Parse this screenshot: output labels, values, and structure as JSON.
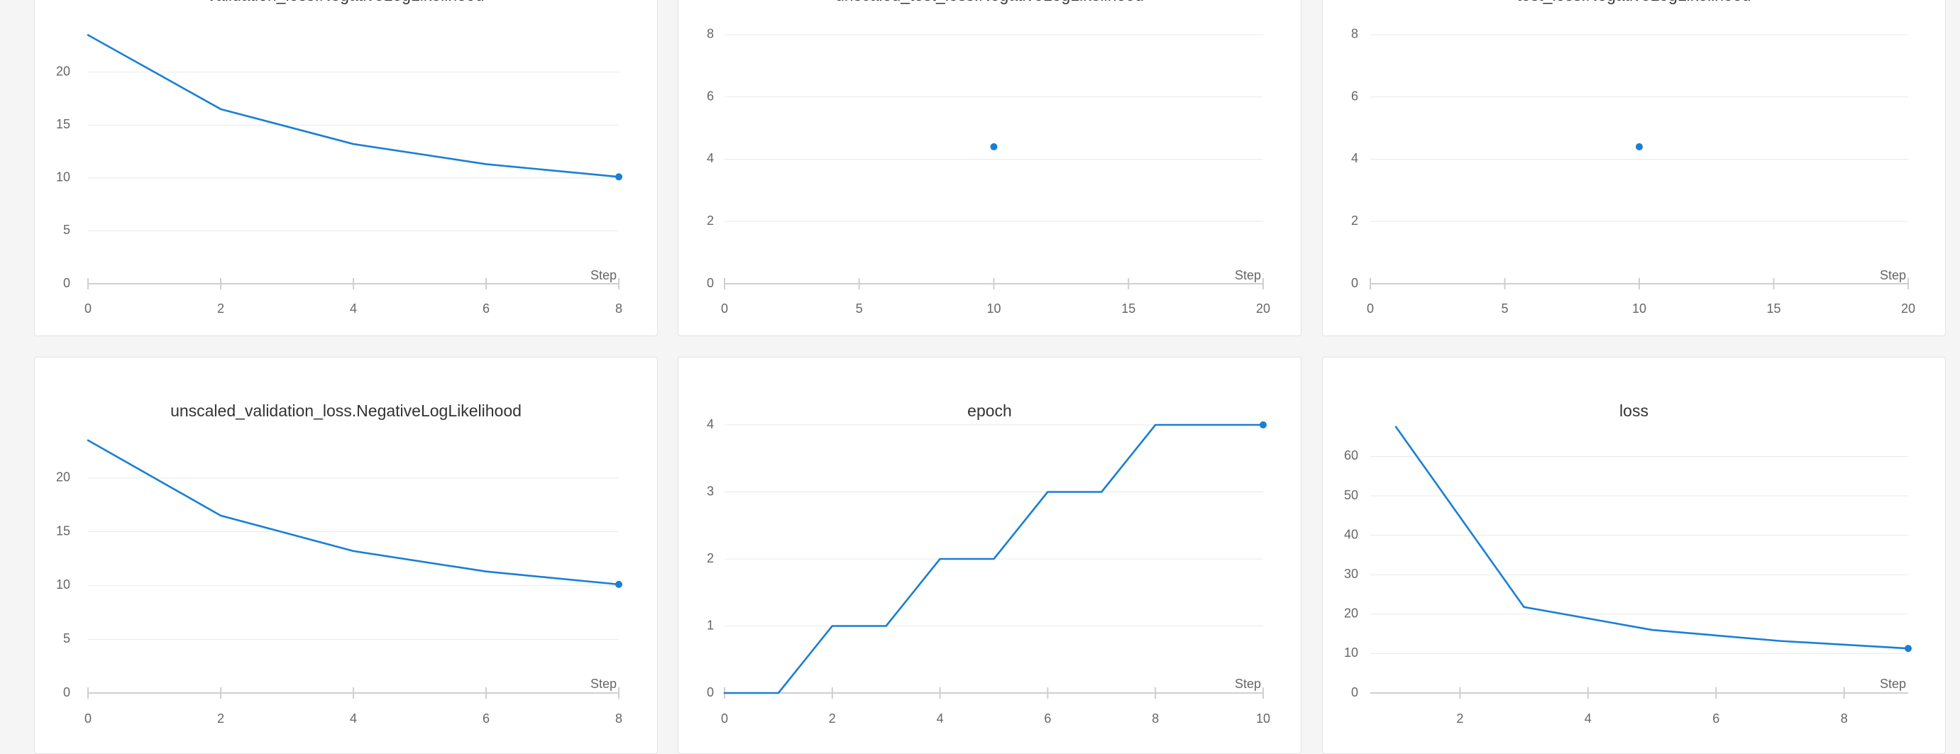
{
  "colors": {
    "line": "#1a7fd4",
    "grid": "#e9e9e9",
    "axis": "#cfcfcf",
    "text": "#666666",
    "title": "#333333"
  },
  "chart_data": [
    {
      "type": "line",
      "title": "validation_loss.NegativeLogLikelihood",
      "xlabel": "Step",
      "xlim": [
        0,
        8
      ],
      "ylim": [
        0,
        25
      ],
      "xticks": [
        0,
        2,
        4,
        6,
        8
      ],
      "yticks": [
        0,
        5,
        10,
        15,
        20
      ],
      "grid": true,
      "series": [
        {
          "x": [
            0,
            2,
            4,
            6,
            8
          ],
          "y": [
            23.5,
            16.5,
            13.2,
            11.3,
            10.1
          ]
        }
      ]
    },
    {
      "type": "scatter",
      "title": "unscaled_test_loss.NegativeLogLikelihood",
      "xlabel": "Step",
      "xlim": [
        0,
        20
      ],
      "ylim": [
        0,
        8.5
      ],
      "xticks": [
        0,
        5,
        10,
        15,
        20
      ],
      "yticks": [
        0,
        2,
        4,
        6,
        8
      ],
      "grid": true,
      "series": [
        {
          "x": [
            10
          ],
          "y": [
            4.4
          ]
        }
      ]
    },
    {
      "type": "scatter",
      "title": "test_loss.NegativeLogLikelihood",
      "xlabel": "Step",
      "xlim": [
        0,
        20
      ],
      "ylim": [
        0,
        8.5
      ],
      "xticks": [
        0,
        5,
        10,
        15,
        20
      ],
      "yticks": [
        0,
        2,
        4,
        6,
        8
      ],
      "grid": true,
      "series": [
        {
          "x": [
            10
          ],
          "y": [
            4.4
          ]
        }
      ]
    },
    {
      "type": "line",
      "title": "unscaled_validation_loss.NegativeLogLikelihood",
      "xlabel": "Step",
      "xlim": [
        0,
        8
      ],
      "ylim": [
        0,
        25
      ],
      "xticks": [
        0,
        2,
        4,
        6,
        8
      ],
      "yticks": [
        0,
        5,
        10,
        15,
        20
      ],
      "grid": true,
      "series": [
        {
          "x": [
            0,
            2,
            4,
            6,
            8
          ],
          "y": [
            23.5,
            16.5,
            13.2,
            11.3,
            10.1
          ]
        }
      ]
    },
    {
      "type": "line",
      "title": "epoch",
      "xlabel": "Step",
      "xlim": [
        0,
        10
      ],
      "ylim": [
        0,
        4
      ],
      "xticks": [
        0,
        2,
        4,
        6,
        8,
        10
      ],
      "yticks": [
        0,
        1,
        2,
        3,
        4
      ],
      "grid": true,
      "series": [
        {
          "x": [
            0,
            1,
            2,
            3,
            4,
            5,
            6,
            7,
            8,
            9,
            10
          ],
          "y": [
            0,
            0,
            1,
            1,
            2,
            2,
            3,
            3,
            4,
            4,
            4
          ]
        }
      ]
    },
    {
      "type": "line",
      "title": "loss",
      "xlabel": "Step",
      "xlim": [
        0.6,
        9
      ],
      "ylim": [
        0,
        68
      ],
      "xticks": [
        2,
        4,
        6,
        8
      ],
      "yticks": [
        0,
        10,
        20,
        30,
        40,
        50,
        60
      ],
      "grid": true,
      "series": [
        {
          "x": [
            1,
            3,
            5,
            7,
            9
          ],
          "y": [
            67.5,
            21.8,
            16.0,
            13.2,
            11.3
          ]
        }
      ]
    }
  ]
}
